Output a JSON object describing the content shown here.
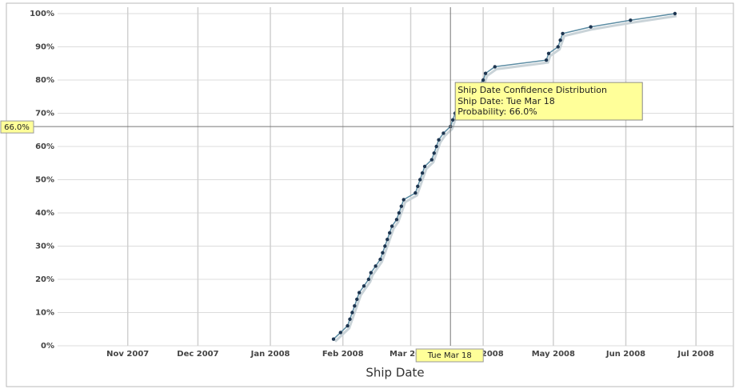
{
  "chart_data": {
    "type": "line",
    "x_label": "Ship Date",
    "xlim": [
      "2007-10-02",
      "2008-07-17"
    ],
    "xticks": [
      {
        "value": "2007-11-01",
        "label": "Nov 2007"
      },
      {
        "value": "2007-12-01",
        "label": "Dec 2007"
      },
      {
        "value": "2008-01-01",
        "label": "Jan 2008"
      },
      {
        "value": "2008-02-01",
        "label": "Feb 2008"
      },
      {
        "value": "2008-03-01",
        "label": "Mar 2008"
      },
      {
        "value": "2008-04-01",
        "label": "Apr 2008"
      },
      {
        "value": "2008-05-01",
        "label": "May 2008"
      },
      {
        "value": "2008-06-01",
        "label": "Jun 2008"
      },
      {
        "value": "2008-07-01",
        "label": "Jul 2008"
      }
    ],
    "ylim": [
      0,
      100
    ],
    "yticks": [
      {
        "value": 0,
        "label": "0%"
      },
      {
        "value": 10,
        "label": "10%"
      },
      {
        "value": 20,
        "label": "20%"
      },
      {
        "value": 30,
        "label": "30%"
      },
      {
        "value": 40,
        "label": "40%"
      },
      {
        "value": 50,
        "label": "50%"
      },
      {
        "value": 60,
        "label": "60%"
      },
      {
        "value": 70,
        "label": "70%"
      },
      {
        "value": 80,
        "label": "80%"
      },
      {
        "value": 90,
        "label": "90%"
      },
      {
        "value": 100,
        "label": "100%"
      }
    ],
    "grid": true,
    "series": [
      {
        "color": "#5b8ca3",
        "marker_color": "#1d3550",
        "x": [
          "2008-01-28",
          "2008-01-31",
          "2008-02-03",
          "2008-02-04",
          "2008-02-05",
          "2008-02-06",
          "2008-02-07",
          "2008-02-08",
          "2008-02-10",
          "2008-02-12",
          "2008-02-13",
          "2008-02-15",
          "2008-02-17",
          "2008-02-18",
          "2008-02-19",
          "2008-02-20",
          "2008-02-21",
          "2008-02-22",
          "2008-02-24",
          "2008-02-25",
          "2008-02-26",
          "2008-02-27",
          "2008-03-03",
          "2008-03-04",
          "2008-03-05",
          "2008-03-06",
          "2008-03-07",
          "2008-03-10",
          "2008-03-11",
          "2008-03-12",
          "2008-03-13",
          "2008-03-15",
          "2008-03-18",
          "2008-03-19",
          "2008-03-20",
          "2008-04-01",
          "2008-04-02",
          "2008-04-06",
          "2008-04-28",
          "2008-04-29",
          "2008-05-03",
          "2008-05-04",
          "2008-05-05",
          "2008-05-17",
          "2008-06-03",
          "2008-06-22"
        ],
        "values": [
          2,
          4,
          6,
          8,
          10,
          12,
          14,
          16,
          18,
          20,
          22,
          24,
          26,
          28,
          30,
          32,
          34,
          36,
          38,
          40,
          42,
          44,
          46,
          48,
          50,
          52,
          54,
          56,
          58,
          60,
          62,
          64,
          66,
          68,
          70,
          80,
          82,
          84,
          86,
          88,
          90,
          92,
          94,
          96,
          98,
          100
        ]
      }
    ],
    "crosshair": {
      "x": "2008-03-18",
      "y": 66,
      "x_label": "Tue Mar 18",
      "y_label": "66.0%"
    },
    "tooltip": {
      "title": "Ship Date Confidence Distribution",
      "lines": [
        "Ship Date: Tue Mar 18",
        "Probability: 66.0%"
      ]
    }
  }
}
